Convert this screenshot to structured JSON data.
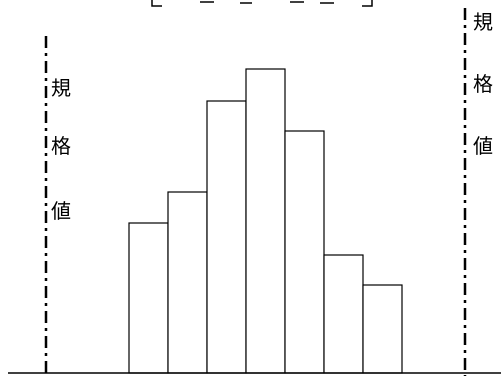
{
  "chart_data": {
    "type": "bar",
    "title": "",
    "xlabel": "",
    "ylabel": "",
    "grid": false,
    "legend": "none",
    "values": [
      150,
      181,
      272,
      304,
      242,
      118,
      88
    ],
    "ylim": [
      0,
      320
    ],
    "spec_limit_labels": {
      "left": [
        "規",
        "格",
        "値"
      ],
      "right": [
        "規",
        "格",
        "値"
      ]
    },
    "colors": {
      "bar_fill": "#ffffff",
      "bar_stroke": "#000000",
      "limit_line": "#000000"
    }
  }
}
